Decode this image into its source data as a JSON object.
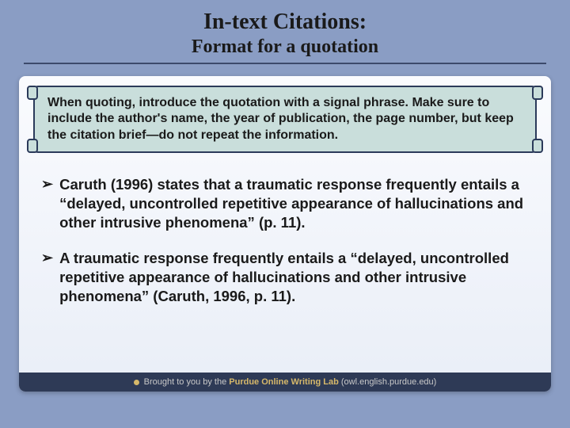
{
  "header": {
    "title": "In-text Citations:",
    "subtitle": "Format for a quotation"
  },
  "scroll": {
    "text": "When quoting, introduce the quotation with a signal phrase. Make sure to include the author's name, the year of publication, the page number, but keep the citation brief—do not repeat the information."
  },
  "bullets": [
    "Caruth (1996) states that a traumatic response frequently entails a “delayed, uncontrolled repetitive appearance of hallucinations and other intrusive phenomena” (p. 11).",
    "A traumatic response frequently entails a “delayed, uncontrolled repetitive appearance of hallucinations and other intrusive phenomena” (Caruth, 1996, p. 11)."
  ],
  "footer": {
    "prefix": "Brought to you by the ",
    "brand": "Purdue Online Writing Lab",
    "url": " (owl.english.purdue.edu)"
  },
  "styling": {
    "background_color": "#8a9dc4",
    "panel_gradient_top": "#fafbfe",
    "panel_gradient_bottom": "#e9eef7",
    "scroll_fill": "#c9dedb",
    "scroll_border": "#2b3a5a",
    "title_font": "Times New Roman",
    "body_font": "Arial",
    "title_fontsize": 28,
    "subtitle_fontsize": 24,
    "scroll_fontsize": 16,
    "bullet_fontsize": 18.5,
    "footer_bg": "#2e3a56",
    "footer_text_color": "#c9c9c9",
    "footer_brand_color": "#d6b86a",
    "text_color": "#1a1a1a"
  }
}
